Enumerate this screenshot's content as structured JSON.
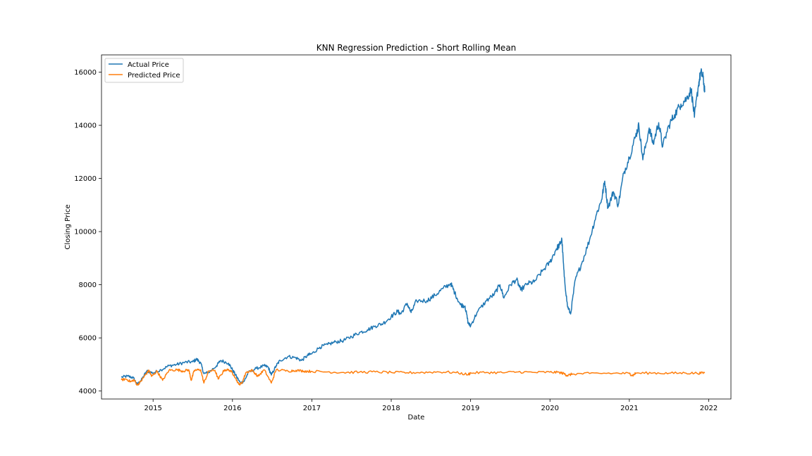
{
  "chart_data": {
    "type": "line",
    "title": "KNN Regression Prediction - Short Rolling Mean",
    "xlabel": "Date",
    "ylabel": "Closing Price",
    "xlim": [
      2014.35,
      2022.28
    ],
    "ylim": [
      3700,
      16650
    ],
    "x_ticks": [
      {
        "value": 2015,
        "label": "2015"
      },
      {
        "value": 2016,
        "label": "2016"
      },
      {
        "value": 2017,
        "label": "2017"
      },
      {
        "value": 2018,
        "label": "2018"
      },
      {
        "value": 2019,
        "label": "2019"
      },
      {
        "value": 2020,
        "label": "2020"
      },
      {
        "value": 2021,
        "label": "2021"
      },
      {
        "value": 2022,
        "label": "2022"
      }
    ],
    "y_ticks": [
      {
        "value": 4000,
        "label": "4000"
      },
      {
        "value": 6000,
        "label": "6000"
      },
      {
        "value": 8000,
        "label": "8000"
      },
      {
        "value": 10000,
        "label": "10000"
      },
      {
        "value": 12000,
        "label": "12000"
      },
      {
        "value": 14000,
        "label": "14000"
      },
      {
        "value": 16000,
        "label": "16000"
      }
    ],
    "grid": false,
    "legend": {
      "position": "top-left"
    },
    "series": [
      {
        "name": "Actual Price",
        "color": "#1f77b4",
        "points": [
          [
            2014.6,
            4520
          ],
          [
            2014.68,
            4560
          ],
          [
            2014.75,
            4500
          ],
          [
            2014.8,
            4250
          ],
          [
            2014.85,
            4400
          ],
          [
            2014.92,
            4750
          ],
          [
            2015.0,
            4680
          ],
          [
            2015.1,
            4800
          ],
          [
            2015.2,
            4950
          ],
          [
            2015.3,
            5000
          ],
          [
            2015.4,
            5080
          ],
          [
            2015.5,
            5100
          ],
          [
            2015.55,
            5200
          ],
          [
            2015.6,
            5050
          ],
          [
            2015.64,
            4650
          ],
          [
            2015.7,
            4700
          ],
          [
            2015.8,
            4950
          ],
          [
            2015.85,
            5150
          ],
          [
            2015.95,
            5050
          ],
          [
            2016.0,
            4800
          ],
          [
            2016.05,
            4550
          ],
          [
            2016.1,
            4300
          ],
          [
            2016.15,
            4380
          ],
          [
            2016.2,
            4700
          ],
          [
            2016.3,
            4850
          ],
          [
            2016.4,
            4950
          ],
          [
            2016.45,
            4900
          ],
          [
            2016.49,
            4600
          ],
          [
            2016.55,
            4950
          ],
          [
            2016.6,
            5150
          ],
          [
            2016.7,
            5300
          ],
          [
            2016.8,
            5250
          ],
          [
            2016.87,
            5150
          ],
          [
            2016.95,
            5350
          ],
          [
            2017.0,
            5400
          ],
          [
            2017.1,
            5650
          ],
          [
            2017.2,
            5750
          ],
          [
            2017.3,
            5850
          ],
          [
            2017.4,
            5900
          ],
          [
            2017.5,
            6050
          ],
          [
            2017.6,
            6200
          ],
          [
            2017.7,
            6300
          ],
          [
            2017.8,
            6450
          ],
          [
            2017.9,
            6550
          ],
          [
            2018.0,
            6800
          ],
          [
            2018.08,
            7000
          ],
          [
            2018.12,
            6900
          ],
          [
            2018.2,
            7300
          ],
          [
            2018.25,
            6950
          ],
          [
            2018.32,
            7400
          ],
          [
            2018.45,
            7400
          ],
          [
            2018.55,
            7600
          ],
          [
            2018.65,
            7850
          ],
          [
            2018.75,
            8050
          ],
          [
            2018.8,
            7700
          ],
          [
            2018.87,
            7250
          ],
          [
            2018.93,
            7200
          ],
          [
            2018.97,
            6550
          ],
          [
            2019.0,
            6450
          ],
          [
            2019.08,
            6950
          ],
          [
            2019.2,
            7400
          ],
          [
            2019.3,
            7650
          ],
          [
            2019.37,
            8000
          ],
          [
            2019.42,
            7500
          ],
          [
            2019.5,
            8000
          ],
          [
            2019.58,
            8200
          ],
          [
            2019.63,
            7800
          ],
          [
            2019.72,
            8050
          ],
          [
            2019.8,
            8100
          ],
          [
            2019.9,
            8500
          ],
          [
            2020.0,
            8850
          ],
          [
            2020.08,
            9350
          ],
          [
            2020.12,
            9500
          ],
          [
            2020.15,
            9700
          ],
          [
            2020.18,
            8300
          ],
          [
            2020.22,
            7200
          ],
          [
            2020.26,
            6900
          ],
          [
            2020.32,
            8200
          ],
          [
            2020.4,
            8800
          ],
          [
            2020.5,
            9700
          ],
          [
            2020.58,
            10600
          ],
          [
            2020.65,
            11200
          ],
          [
            2020.69,
            11900
          ],
          [
            2020.73,
            10900
          ],
          [
            2020.8,
            11500
          ],
          [
            2020.86,
            11000
          ],
          [
            2020.93,
            12200
          ],
          [
            2021.0,
            12800
          ],
          [
            2021.08,
            13600
          ],
          [
            2021.12,
            14000
          ],
          [
            2021.17,
            12700
          ],
          [
            2021.25,
            13900
          ],
          [
            2021.3,
            13300
          ],
          [
            2021.37,
            14100
          ],
          [
            2021.42,
            13200
          ],
          [
            2021.5,
            14000
          ],
          [
            2021.57,
            14400
          ],
          [
            2021.65,
            14800
          ],
          [
            2021.72,
            15000
          ],
          [
            2021.78,
            15350
          ],
          [
            2021.82,
            14300
          ],
          [
            2021.87,
            15500
          ],
          [
            2021.9,
            16000
          ],
          [
            2021.93,
            15800
          ],
          [
            2021.95,
            15250
          ]
        ]
      },
      {
        "name": "Predicted Price",
        "color": "#ff7f0e",
        "points": [
          [
            2014.6,
            4420
          ],
          [
            2014.66,
            4450
          ],
          [
            2014.72,
            4350
          ],
          [
            2014.76,
            4420
          ],
          [
            2014.8,
            4220
          ],
          [
            2014.85,
            4380
          ],
          [
            2014.9,
            4600
          ],
          [
            2014.95,
            4780
          ],
          [
            2014.98,
            4550
          ],
          [
            2015.05,
            4750
          ],
          [
            2015.12,
            4400
          ],
          [
            2015.2,
            4780
          ],
          [
            2015.3,
            4800
          ],
          [
            2015.38,
            4750
          ],
          [
            2015.45,
            4800
          ],
          [
            2015.48,
            4400
          ],
          [
            2015.52,
            4780
          ],
          [
            2015.6,
            4800
          ],
          [
            2015.64,
            4300
          ],
          [
            2015.7,
            4750
          ],
          [
            2015.78,
            4780
          ],
          [
            2015.82,
            4450
          ],
          [
            2015.9,
            4800
          ],
          [
            2015.97,
            4780
          ],
          [
            2016.02,
            4600
          ],
          [
            2016.08,
            4250
          ],
          [
            2016.12,
            4300
          ],
          [
            2016.17,
            4700
          ],
          [
            2016.25,
            4780
          ],
          [
            2016.32,
            4550
          ],
          [
            2016.4,
            4800
          ],
          [
            2016.49,
            4300
          ],
          [
            2016.55,
            4800
          ],
          [
            2016.7,
            4750
          ],
          [
            2016.8,
            4780
          ],
          [
            2016.9,
            4750
          ],
          [
            2017.0,
            4740
          ],
          [
            2017.2,
            4720
          ],
          [
            2017.4,
            4700
          ],
          [
            2017.6,
            4710
          ],
          [
            2017.8,
            4720
          ],
          [
            2018.0,
            4700
          ],
          [
            2018.2,
            4690
          ],
          [
            2018.4,
            4700
          ],
          [
            2018.6,
            4720
          ],
          [
            2018.8,
            4700
          ],
          [
            2018.97,
            4620
          ],
          [
            2019.0,
            4680
          ],
          [
            2019.2,
            4700
          ],
          [
            2019.4,
            4690
          ],
          [
            2019.6,
            4720
          ],
          [
            2019.8,
            4700
          ],
          [
            2020.0,
            4710
          ],
          [
            2020.12,
            4700
          ],
          [
            2020.18,
            4650
          ],
          [
            2020.22,
            4580
          ],
          [
            2020.28,
            4640
          ],
          [
            2020.5,
            4660
          ],
          [
            2020.8,
            4670
          ],
          [
            2021.0,
            4660
          ],
          [
            2021.04,
            4580
          ],
          [
            2021.08,
            4670
          ],
          [
            2021.3,
            4680
          ],
          [
            2021.5,
            4670
          ],
          [
            2021.7,
            4680
          ],
          [
            2021.85,
            4670
          ],
          [
            2021.95,
            4680
          ]
        ]
      }
    ]
  }
}
